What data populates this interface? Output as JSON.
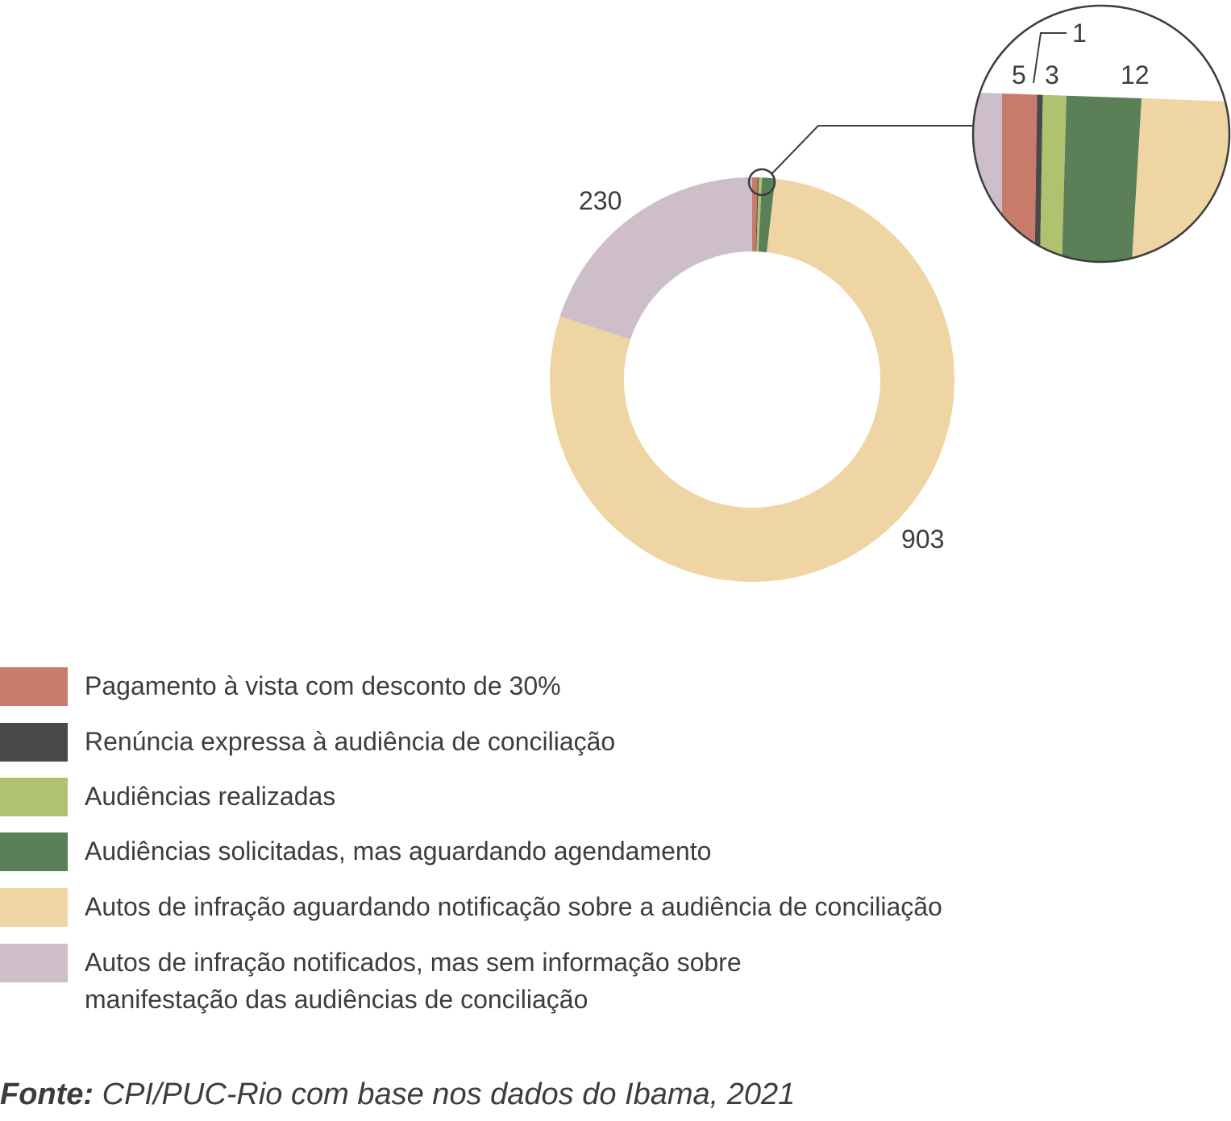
{
  "chart_data": {
    "type": "pie",
    "variant": "donut",
    "title": "",
    "series": [
      {
        "name": "Pagamento à vista com desconto de 30%",
        "value": 5,
        "color": "#c97b6b"
      },
      {
        "name": "Renúncia expressa à audiência de conciliação",
        "value": 1,
        "color": "#48494b"
      },
      {
        "name": "Audiências realizadas",
        "value": 3,
        "color": "#b0c170"
      },
      {
        "name": "Audiências solicitadas, mas aguardando agendamento",
        "value": 12,
        "color": "#5b7f56"
      },
      {
        "name": "Autos de infração aguardando notificação sobre a audiência de conciliação",
        "value": 903,
        "color": "#efd5a4"
      },
      {
        "name": "Autos de infração notificados, mas sem informação sobre\nmanifestação das audiências de conciliação",
        "value": 230,
        "color": "#cdbec9"
      }
    ],
    "data_labels": {
      "s0": "5",
      "s1": "1",
      "s2": "3",
      "s3": "12",
      "s4": "903",
      "s5": "230"
    },
    "inset_zoom": true,
    "legend_position": "bottom-left"
  },
  "source": {
    "label": "Fonte:",
    "text": " CPI/PUC-Rio com base nos dados do Ibama, 2021"
  }
}
